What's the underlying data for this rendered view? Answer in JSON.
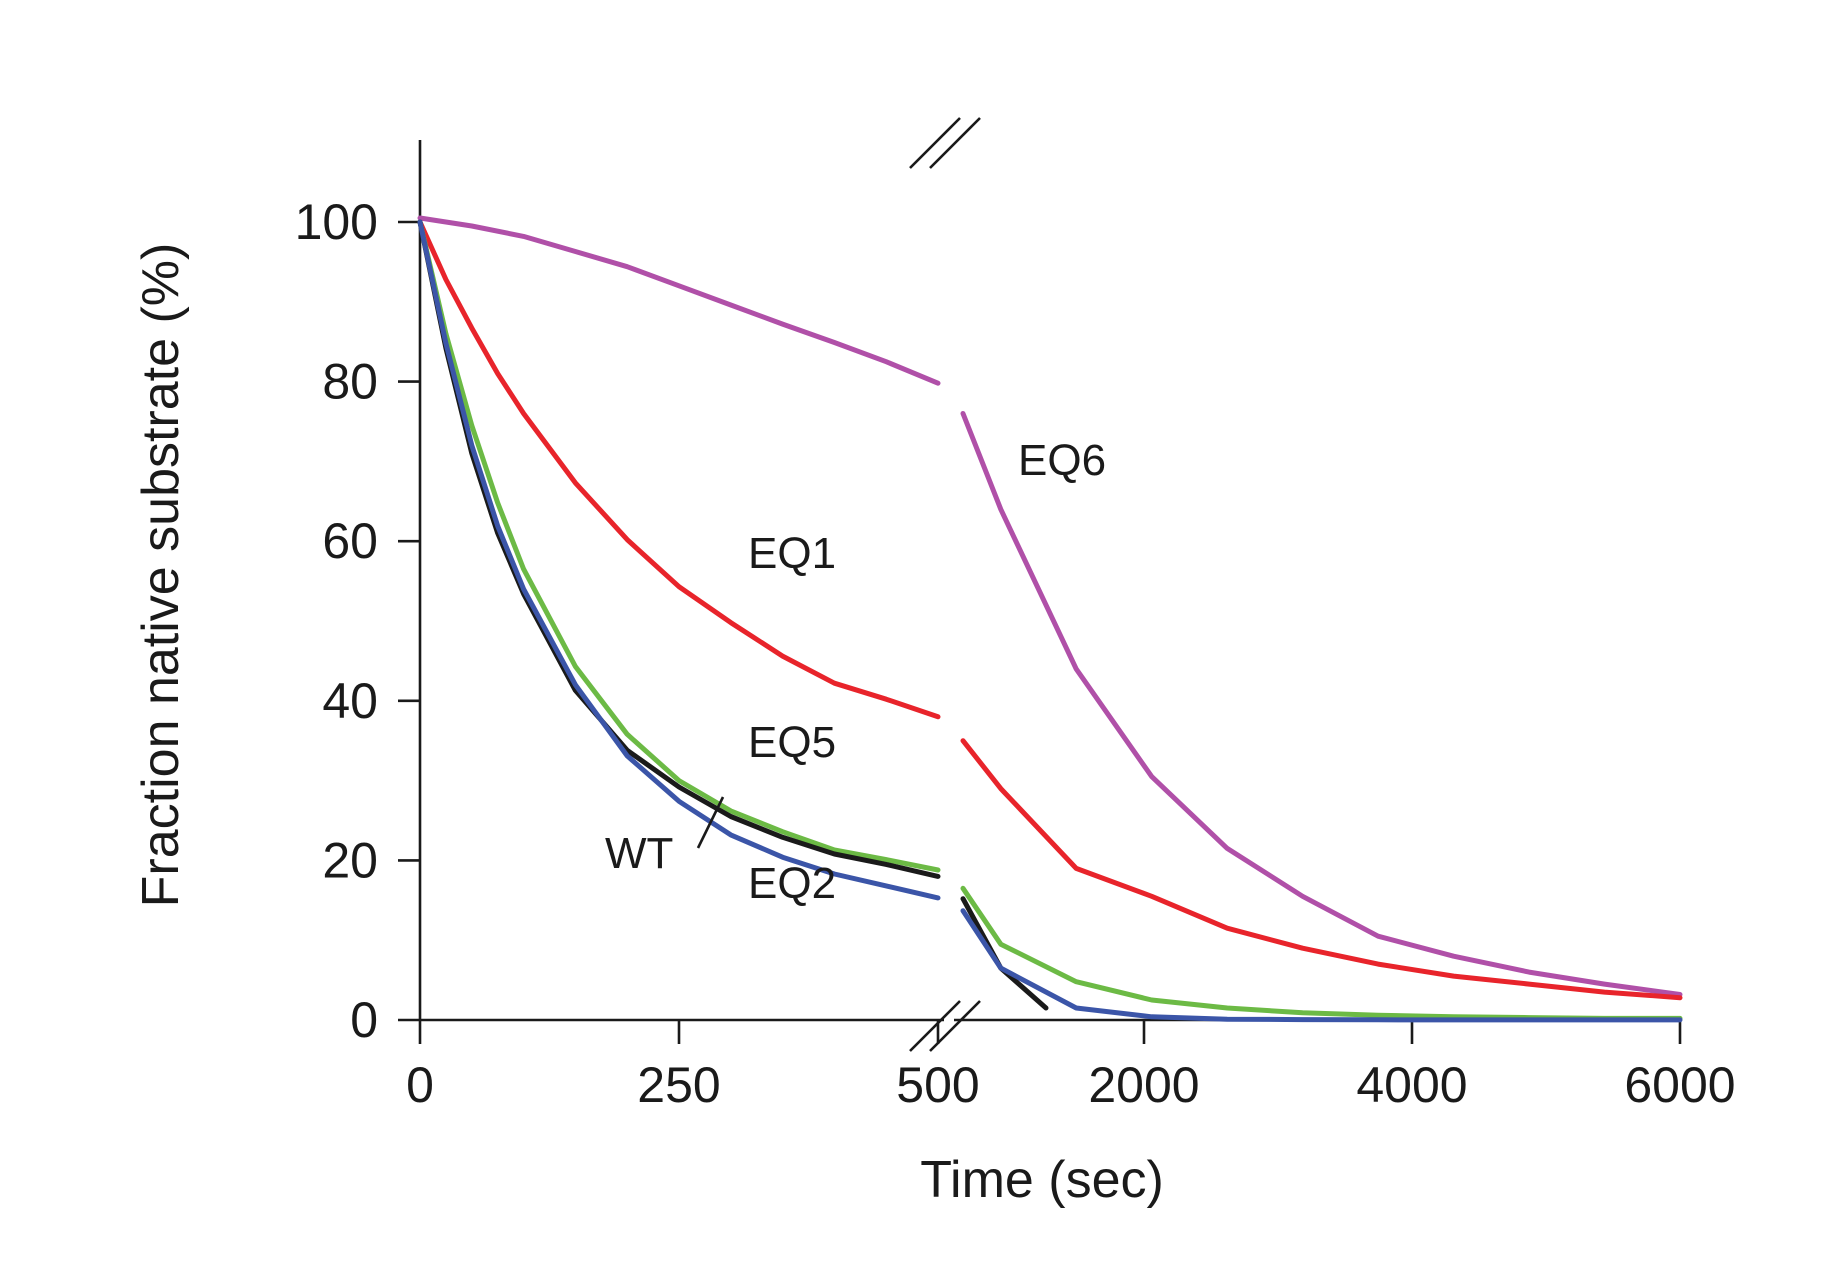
{
  "chart_data": {
    "type": "line",
    "xlabel": "Time (sec)",
    "ylabel": "Fraction native substrate (%)",
    "y_ticks": [
      "0",
      "20",
      "40",
      "60",
      "80",
      "100"
    ],
    "x_ticks": [
      "0",
      "250",
      "500",
      "2000",
      "4000",
      "6000"
    ],
    "x_axis_break": "between 500 and ~1200 sec (broken axis, two segments)",
    "ylim": [
      0,
      110
    ],
    "x_segments": [
      [
        0,
        500
      ],
      [
        1230,
        6000
      ]
    ],
    "grid": false,
    "legend": "none (inline labels)",
    "series": [
      {
        "name": "EQ6",
        "color": "#b050a8",
        "x": [
          0,
          50,
          100,
          150,
          200,
          250,
          300,
          350,
          400,
          450,
          500,
          1250,
          1500,
          2000,
          2500,
          3000,
          3500,
          4000,
          4500,
          5000,
          5500,
          6000
        ],
        "y": [
          100.5,
          99.5,
          98.2,
          96.3,
          94.4,
          92.0,
          89.6,
          87.2,
          84.9,
          82.5,
          79.8,
          76.0,
          64.0,
          44.0,
          30.5,
          21.5,
          15.5,
          10.5,
          8.0,
          6.0,
          4.5,
          3.2
        ]
      },
      {
        "name": "EQ1",
        "color": "#e8242b",
        "x": [
          0,
          25,
          50,
          75,
          100,
          150,
          200,
          250,
          300,
          350,
          400,
          450,
          500,
          1250,
          1500,
          2000,
          2500,
          3000,
          3500,
          4000,
          4500,
          5000,
          5500,
          6000
        ],
        "y": [
          100,
          92.8,
          86.7,
          81.0,
          76.0,
          67.3,
          60.2,
          54.3,
          49.8,
          45.6,
          42.2,
          40.2,
          38.0,
          35.0,
          29.0,
          19.0,
          15.5,
          11.5,
          9.0,
          7.0,
          5.5,
          4.5,
          3.5,
          2.8
        ]
      },
      {
        "name": "EQ5",
        "color": "#6cba45",
        "x": [
          0,
          25,
          50,
          75,
          100,
          150,
          200,
          250,
          300,
          350,
          400,
          450,
          500,
          1250,
          1500,
          2000,
          2500,
          3000,
          3500,
          4000,
          4500,
          5000,
          5500,
          6000
        ],
        "y": [
          100,
          86.0,
          74.5,
          64.8,
          56.5,
          44.3,
          35.8,
          30.0,
          26.2,
          23.6,
          21.3,
          20.1,
          18.8,
          16.5,
          9.5,
          4.8,
          2.5,
          1.5,
          0.9,
          0.6,
          0.4,
          0.3,
          0.2,
          0.2
        ]
      },
      {
        "name": "WT",
        "color": "#1a1a1a",
        "x": [
          0,
          25,
          50,
          75,
          100,
          150,
          200,
          250,
          300,
          350,
          400,
          450,
          500,
          1250,
          1500,
          1800
        ],
        "y": [
          100,
          84.2,
          71.0,
          61.0,
          53.4,
          41.3,
          33.8,
          29.2,
          25.5,
          22.9,
          20.8,
          19.5,
          18.0,
          15.2,
          6.5,
          1.5
        ]
      },
      {
        "name": "EQ2",
        "color": "#3b55a8",
        "x": [
          0,
          25,
          50,
          75,
          100,
          150,
          200,
          250,
          300,
          350,
          400,
          450,
          500,
          1250,
          1500,
          2000,
          2500,
          3000,
          3500,
          4000,
          4500,
          5000,
          5500,
          6000
        ],
        "y": [
          100,
          84.8,
          72.0,
          61.9,
          54.0,
          42.0,
          33.1,
          27.4,
          23.2,
          20.4,
          18.3,
          16.8,
          15.3,
          13.7,
          6.5,
          1.5,
          0.4,
          0.1,
          0.05,
          0.02,
          0.01,
          0.01,
          0.01,
          0.01
        ]
      }
    ]
  }
}
